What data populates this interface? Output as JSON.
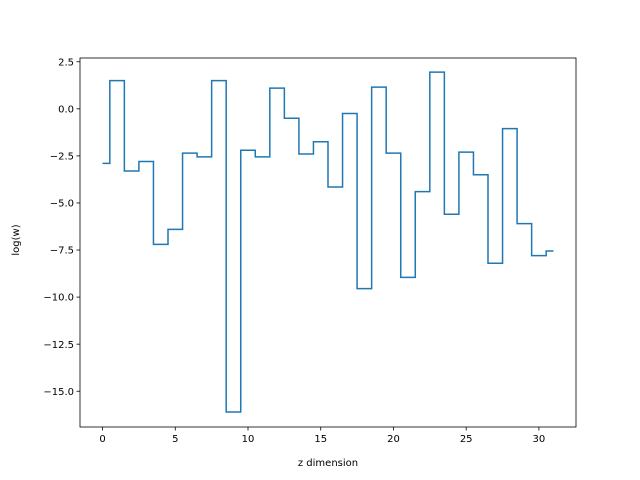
{
  "chart_data": {
    "type": "line",
    "drawstyle": "steps-mid",
    "title": "",
    "xlabel": "z dimension",
    "ylabel": "log(w)",
    "xlim": [
      -1.55,
      32.55
    ],
    "ylim": [
      -16.9,
      2.7
    ],
    "xticks": [
      0,
      5,
      10,
      15,
      20,
      25,
      30
    ],
    "xtick_labels": [
      "0",
      "5",
      "10",
      "15",
      "20",
      "25",
      "30"
    ],
    "yticks": [
      -15.0,
      -12.5,
      -10.0,
      -7.5,
      -5.0,
      -2.5,
      0.0,
      2.5
    ],
    "ytick_labels": [
      "−15.0",
      "−12.5",
      "−10.0",
      "−7.5",
      "−5.0",
      "−2.5",
      "0.0",
      "2.5"
    ],
    "grid": false,
    "legend": "none",
    "color": "#1f77b4",
    "x": [
      0,
      1,
      2,
      3,
      4,
      5,
      6,
      7,
      8,
      9,
      10,
      11,
      12,
      13,
      14,
      15,
      16,
      17,
      18,
      19,
      20,
      21,
      22,
      23,
      24,
      25,
      26,
      27,
      28,
      29,
      30,
      31
    ],
    "y": [
      -2.9,
      1.5,
      -3.3,
      -2.8,
      -7.2,
      -6.4,
      -2.35,
      -2.55,
      1.5,
      -16.1,
      -2.2,
      -2.55,
      1.1,
      -0.5,
      -2.4,
      -1.75,
      -4.15,
      -0.25,
      -9.55,
      1.15,
      -2.35,
      -8.95,
      -4.4,
      1.95,
      -5.6,
      -2.3,
      -3.5,
      -8.2,
      -1.05,
      -6.1,
      -7.8,
      -7.55
    ]
  }
}
